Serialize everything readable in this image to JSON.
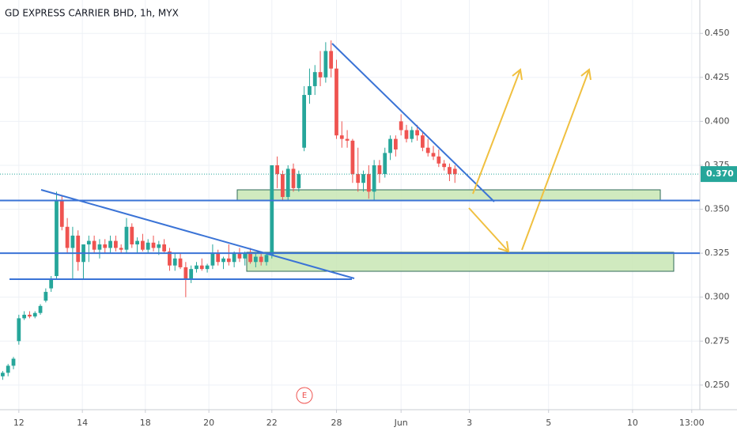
{
  "chart_data": {
    "type": "candlestick",
    "title": "GD EXPRESS CARRIER BHD, 1h, MYX",
    "up_color": "#26a69a",
    "down_color": "#ef5350",
    "open": [
      0.255,
      0.257,
      0.261,
      0.275,
      0.288,
      0.29,
      0.289,
      0.291,
      0.298,
      0.305,
      0.312,
      0.355,
      0.34,
      0.328,
      0.335,
      0.32,
      0.33,
      0.332,
      0.327,
      0.33,
      0.328,
      0.332,
      0.328,
      0.327,
      0.34,
      0.33,
      0.332,
      0.327,
      0.331,
      0.328,
      0.33,
      0.326,
      0.318,
      0.322,
      0.317,
      0.31,
      0.316,
      0.318,
      0.316,
      0.318,
      0.325,
      0.32,
      0.322,
      0.32,
      0.325,
      0.322,
      0.325,
      0.32,
      0.323,
      0.32,
      0.324,
      0.375,
      0.37,
      0.357,
      0.373,
      0.362,
      0.385,
      0.415,
      0.42,
      0.428,
      0.425,
      0.44,
      0.43,
      0.392,
      0.39,
      0.389,
      0.37,
      0.365,
      0.37,
      0.36,
      0.375,
      0.37,
      0.382,
      0.39,
      0.4,
      0.395,
      0.39,
      0.395,
      0.392,
      0.385,
      0.382,
      0.38,
      0.376,
      0.374,
      0.373
    ],
    "high": [
      0.258,
      0.262,
      0.266,
      0.29,
      0.292,
      0.292,
      0.292,
      0.296,
      0.305,
      0.312,
      0.36,
      0.358,
      0.345,
      0.34,
      0.338,
      0.33,
      0.335,
      0.335,
      0.333,
      0.333,
      0.335,
      0.335,
      0.33,
      0.345,
      0.342,
      0.334,
      0.336,
      0.333,
      0.335,
      0.332,
      0.333,
      0.328,
      0.325,
      0.325,
      0.32,
      0.318,
      0.32,
      0.322,
      0.319,
      0.33,
      0.327,
      0.323,
      0.33,
      0.326,
      0.328,
      0.326,
      0.328,
      0.325,
      0.326,
      0.325,
      0.375,
      0.38,
      0.372,
      0.375,
      0.376,
      0.372,
      0.42,
      0.43,
      0.432,
      0.44,
      0.445,
      0.446,
      0.435,
      0.4,
      0.395,
      0.39,
      0.385,
      0.372,
      0.375,
      0.378,
      0.378,
      0.385,
      0.392,
      0.392,
      0.404,
      0.398,
      0.397,
      0.398,
      0.394,
      0.39,
      0.386,
      0.384,
      0.378,
      0.376,
      0.375
    ],
    "low": [
      0.253,
      0.255,
      0.259,
      0.273,
      0.287,
      0.288,
      0.288,
      0.29,
      0.297,
      0.303,
      0.31,
      0.338,
      0.325,
      0.31,
      0.315,
      0.31,
      0.32,
      0.325,
      0.322,
      0.325,
      0.325,
      0.326,
      0.325,
      0.325,
      0.328,
      0.325,
      0.326,
      0.325,
      0.326,
      0.324,
      0.325,
      0.315,
      0.315,
      0.316,
      0.3,
      0.308,
      0.314,
      0.315,
      0.314,
      0.316,
      0.318,
      0.316,
      0.318,
      0.317,
      0.32,
      0.318,
      0.319,
      0.317,
      0.318,
      0.318,
      0.322,
      0.362,
      0.355,
      0.355,
      0.36,
      0.36,
      0.383,
      0.41,
      0.415,
      0.42,
      0.422,
      0.425,
      0.39,
      0.385,
      0.385,
      0.365,
      0.36,
      0.36,
      0.356,
      0.355,
      0.365,
      0.368,
      0.378,
      0.38,
      0.392,
      0.388,
      0.388,
      0.389,
      0.383,
      0.38,
      0.378,
      0.374,
      0.372,
      0.366,
      0.365
    ],
    "close": [
      0.257,
      0.261,
      0.265,
      0.288,
      0.29,
      0.289,
      0.291,
      0.295,
      0.303,
      0.31,
      0.355,
      0.34,
      0.328,
      0.335,
      0.32,
      0.33,
      0.332,
      0.327,
      0.33,
      0.328,
      0.332,
      0.328,
      0.327,
      0.34,
      0.33,
      0.332,
      0.327,
      0.331,
      0.328,
      0.33,
      0.326,
      0.318,
      0.322,
      0.317,
      0.31,
      0.316,
      0.318,
      0.316,
      0.318,
      0.325,
      0.32,
      0.322,
      0.32,
      0.325,
      0.322,
      0.325,
      0.32,
      0.323,
      0.32,
      0.324,
      0.375,
      0.37,
      0.357,
      0.373,
      0.362,
      0.37,
      0.415,
      0.42,
      0.428,
      0.425,
      0.44,
      0.43,
      0.392,
      0.39,
      0.389,
      0.37,
      0.365,
      0.37,
      0.36,
      0.375,
      0.37,
      0.382,
      0.39,
      0.384,
      0.395,
      0.39,
      0.395,
      0.392,
      0.385,
      0.382,
      0.38,
      0.376,
      0.374,
      0.37,
      0.37
    ],
    "xlim": [
      -0.5,
      129.5
    ],
    "xticks": [
      {
        "value": 3,
        "label": "12"
      },
      {
        "value": 14.8,
        "label": "14"
      },
      {
        "value": 26.5,
        "label": "18"
      },
      {
        "value": 38.3,
        "label": "20"
      },
      {
        "value": 50,
        "label": "22"
      },
      {
        "value": 62,
        "label": "28"
      },
      {
        "value": 74,
        "label": "Jun"
      },
      {
        "value": 86.7,
        "label": "3"
      },
      {
        "value": 101.4,
        "label": "5"
      },
      {
        "value": 117,
        "label": "10"
      },
      {
        "value": 128,
        "label": "13:00"
      }
    ],
    "ylim": [
      0.236,
      0.469
    ],
    "yticks": [
      {
        "value": 0.45,
        "label": "0.450"
      },
      0.425,
      {
        "value": 0.4,
        "label": "0.400"
      },
      0.375,
      {
        "value": 0.35,
        "label": "0.350"
      },
      0.325,
      {
        "value": 0.3,
        "label": "0.300"
      },
      0.275,
      {
        "value": 0.25,
        "label": "0.250"
      }
    ],
    "horizontal_lines": [
      0.355,
      0.325
    ],
    "last_price": {
      "value": 0.37,
      "label": "0.370"
    },
    "event_marker": "E",
    "grid": true
  }
}
